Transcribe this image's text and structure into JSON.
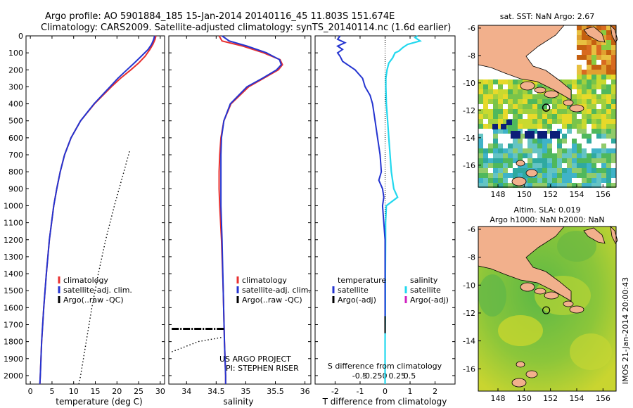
{
  "header": {
    "line1": "Argo profile: AO 5901884_185 15-Jan-2014 20140116_45 11.803S 151.674E",
    "line2": "Climatology: CARS2009. Satellite-adjusted climatology: synTS_20140114.nc (1.6d earlier)"
  },
  "depth_ticks": [
    "0",
    "100",
    "200",
    "300",
    "400",
    "500",
    "600",
    "700",
    "800",
    "900",
    "1000",
    "1100",
    "1200",
    "1300",
    "1400",
    "1500",
    "1600",
    "1700",
    "1800",
    "1900",
    "2000"
  ],
  "colors": {
    "climatology": "#e83030",
    "satellite": "#2434d0",
    "argo": "#000000",
    "sat_sal": "#22d8ee",
    "argo_sal": "#d020c0"
  },
  "chart_data": [
    {
      "type": "line",
      "title": "temperature",
      "xlabel": "temperature (deg C)",
      "ylabel": "depth",
      "xlim": [
        -1,
        31
      ],
      "ylim": [
        2050,
        0
      ],
      "xticks": [
        "0",
        "5",
        "10",
        "15",
        "20",
        "25",
        "30"
      ],
      "legend": [
        "climatology",
        "satellite-adj. clim.",
        "Argo(..raw -QC)"
      ],
      "series": [
        {
          "name": "climatology",
          "depth": [
            0,
            20,
            50,
            80,
            120,
            160,
            200,
            250,
            300,
            400,
            500,
            600,
            700,
            800,
            900,
            1000,
            1200,
            1400,
            1600,
            1800,
            2000,
            2050
          ],
          "values": [
            29.0,
            28.8,
            28.3,
            27.6,
            26.5,
            25.0,
            23.2,
            20.8,
            18.7,
            14.8,
            11.6,
            9.4,
            7.9,
            6.9,
            6.1,
            5.4,
            4.4,
            3.7,
            3.1,
            2.6,
            2.3,
            2.2
          ]
        },
        {
          "name": "satellite-adj. clim.",
          "depth": [
            0,
            20,
            50,
            80,
            120,
            160,
            200,
            250,
            300,
            400,
            500,
            600,
            700,
            800,
            900,
            1000,
            1200,
            1400,
            1600,
            1800,
            2000,
            2050
          ],
          "values": [
            28.7,
            28.5,
            28.0,
            27.2,
            25.6,
            24.0,
            22.3,
            20.2,
            18.4,
            14.7,
            11.6,
            9.4,
            7.9,
            6.9,
            6.1,
            5.4,
            4.4,
            3.7,
            3.1,
            2.6,
            2.3,
            2.2
          ]
        },
        {
          "name": "Argo(..raw -QC)",
          "style": "dotted",
          "depth": [
            680,
            800,
            1000,
            1200,
            1400,
            1600,
            1800,
            2000,
            2050
          ],
          "values": [
            22.9,
            21.6,
            19.4,
            17.4,
            15.7,
            14.2,
            12.9,
            11.6,
            11.2
          ]
        }
      ]
    },
    {
      "type": "line",
      "title": "salinity",
      "xlabel": "salinity",
      "ylabel": "depth",
      "xlim": [
        33.7,
        36.1
      ],
      "ylim": [
        2050,
        0
      ],
      "xticks": [
        "34",
        "34.5",
        "35",
        "35.5",
        "36"
      ],
      "legend": [
        "climatology",
        "satellite-adj. clim.",
        "Argo(..raw -QC)"
      ],
      "series": [
        {
          "name": "climatology",
          "depth": [
            0,
            30,
            60,
            100,
            140,
            170,
            200,
            250,
            300,
            400,
            500,
            600,
            700,
            800,
            900,
            1000,
            1200,
            1500,
            1800,
            2000,
            2050
          ],
          "values": [
            34.55,
            34.6,
            34.95,
            35.3,
            35.58,
            35.62,
            35.55,
            35.3,
            35.05,
            34.75,
            34.63,
            34.58,
            34.56,
            34.55,
            34.55,
            34.56,
            34.59,
            34.62,
            34.64,
            34.66,
            34.66
          ]
        },
        {
          "name": "satellite-adj. clim.",
          "depth": [
            0,
            30,
            60,
            100,
            140,
            170,
            200,
            250,
            300,
            400,
            500,
            600,
            700,
            800,
            900,
            1000,
            1200,
            1500,
            1800,
            2000,
            2050
          ],
          "values": [
            34.6,
            34.72,
            35.02,
            35.35,
            35.57,
            35.6,
            35.52,
            35.28,
            35.02,
            34.74,
            34.63,
            34.59,
            34.58,
            34.58,
            34.58,
            34.58,
            34.6,
            34.62,
            34.64,
            34.66,
            34.66
          ]
        },
        {
          "name": "Argo(..raw -QC)",
          "style": "dashdot",
          "depth": [
            1725,
            1725
          ],
          "values": [
            33.75,
            34.65
          ]
        },
        {
          "name": "Argo dotted",
          "style": "dotted",
          "depth": [
            1860,
            1800,
            1775
          ],
          "values": [
            33.75,
            34.2,
            34.6
          ]
        }
      ]
    },
    {
      "type": "line",
      "title": "difference from climatology",
      "xlabel": "T difference from climatology",
      "xlabel2": "S difference from climatology",
      "xlim": [
        -2.8,
        2.8
      ],
      "ylim": [
        2050,
        0
      ],
      "xticks": [
        "-2",
        "-1",
        "0",
        "1",
        "2"
      ],
      "sticks": [
        "-0.5",
        "-0.25",
        "0",
        "0.25",
        "0.5"
      ],
      "legend_left_title": "temperature",
      "legend_right_title": "salinity",
      "legend": [
        "satellite",
        "Argo(-adj)",
        "satellite",
        "Argo(-adj)"
      ],
      "series": [
        {
          "name": "temperature satellite",
          "depth": [
            0,
            20,
            40,
            60,
            80,
            100,
            120,
            150,
            200,
            250,
            300,
            350,
            400,
            500,
            600,
            700,
            800,
            850,
            900,
            950,
            1000,
            1100,
            1200,
            1400,
            1600,
            1700,
            1750
          ],
          "values": [
            -1.8,
            -1.9,
            -1.6,
            -1.9,
            -1.7,
            -1.9,
            -1.8,
            -1.7,
            -1.2,
            -0.9,
            -0.8,
            -0.6,
            -0.5,
            -0.4,
            -0.3,
            -0.2,
            -0.15,
            -0.25,
            -0.1,
            -0.05,
            -0.1,
            -0.05,
            0,
            0,
            0,
            0,
            0
          ]
        },
        {
          "name": "salinity satellite",
          "depth": [
            0,
            10,
            30,
            50,
            70,
            90,
            100,
            130,
            160,
            200,
            250,
            300,
            400,
            500,
            600,
            700,
            800,
            900,
            950,
            1000,
            1100,
            1200,
            1400,
            1600,
            1800,
            2000,
            2050
          ],
          "values": [
            1.3,
            1.2,
            1.4,
            0.9,
            0.7,
            0.55,
            0.4,
            0.3,
            0.15,
            0.08,
            0.03,
            0.03,
            0.05,
            0.1,
            0.15,
            0.2,
            0.25,
            0.35,
            0.5,
            0.05,
            0.02,
            0.02,
            0.01,
            0.01,
            0,
            0,
            0
          ]
        },
        {
          "name": "Argo(-adj)",
          "depth": [
            1650,
            1750
          ],
          "values": [
            0,
            0
          ]
        }
      ]
    }
  ],
  "maps": [
    {
      "title": "sat. SST: NaN Argo: 2.67",
      "yticks": [
        "-6",
        "-8",
        "-10",
        "-12",
        "-14",
        "-16"
      ],
      "xticks": [
        "148",
        "150",
        "152",
        "154",
        "156"
      ]
    },
    {
      "title1": "Altim. SLA: 0.019",
      "title2": "Argo h1000: NaN h2000: NaN",
      "yticks": [
        "-6",
        "-8",
        "-10",
        "-12",
        "-14",
        "-16"
      ],
      "xticks": [
        "148",
        "150",
        "152",
        "154",
        "156"
      ]
    }
  ],
  "credit": "IMOS 21-Jan-2014 20:00:43",
  "project": "US ARGO PROJECT",
  "pi": "PI: STEPHEN RISER"
}
